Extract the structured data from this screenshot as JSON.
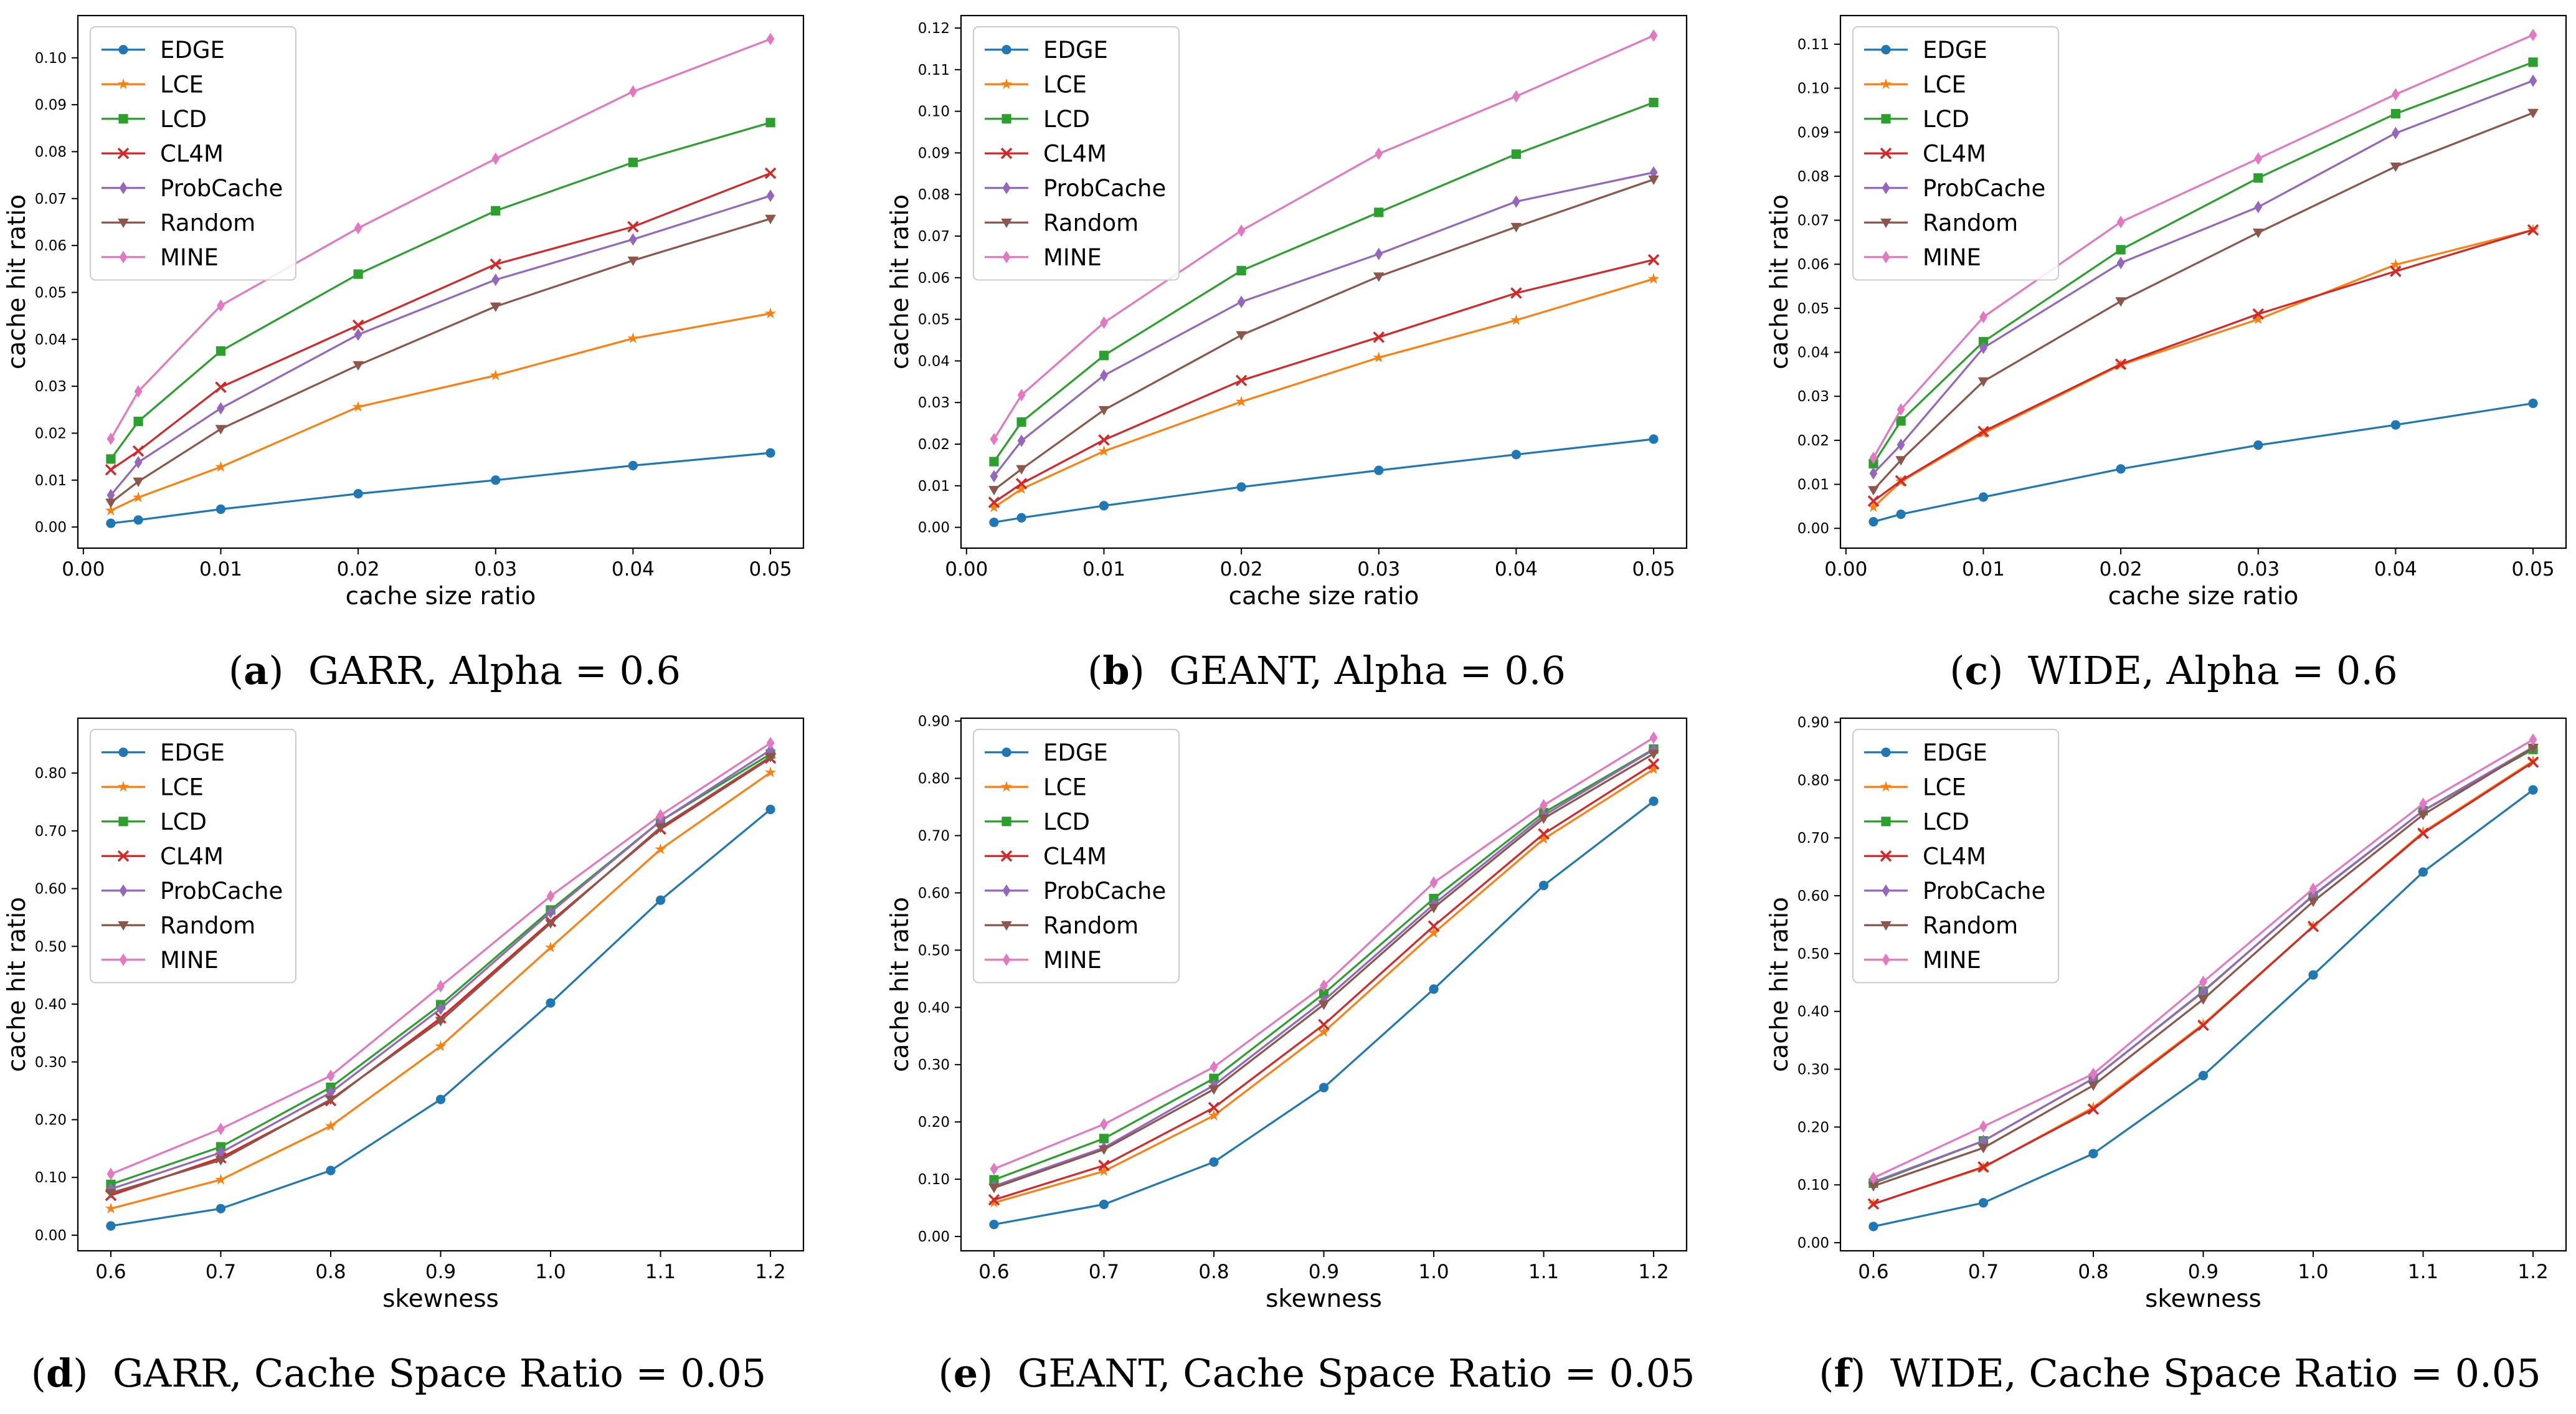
{
  "series_styles": {
    "EDGE": {
      "color": "#1f77b4",
      "marker": "circle"
    },
    "LCE": {
      "color": "#ff7f0e",
      "marker": "star"
    },
    "LCD": {
      "color": "#2ca02c",
      "marker": "square"
    },
    "CL4M": {
      "color": "#d62728",
      "marker": "x"
    },
    "ProbCache": {
      "color": "#9467bd",
      "marker": "diamond"
    },
    "Random": {
      "color": "#8c564b",
      "marker": "triangle-down"
    },
    "MINE": {
      "color": "#e377c2",
      "marker": "diamond"
    }
  },
  "chart_data": [
    {
      "type": "line",
      "caption_letter": "a",
      "caption_text": "GARR, Alpha = 0.6",
      "xlabel": "cache size ratio",
      "ylabel": "cache hit ratio",
      "x": [
        0.002,
        0.004,
        0.01,
        0.02,
        0.03,
        0.04,
        0.05
      ],
      "xlim": [
        -0.0004,
        0.0524
      ],
      "xticks": [
        "0.00",
        "0.01",
        "0.02",
        "0.03",
        "0.04",
        "0.05"
      ],
      "xtick_values": [
        0,
        0.01,
        0.02,
        0.03,
        0.04,
        0.05
      ],
      "ylim": [
        -0.0045,
        0.109
      ],
      "yticks": [
        "0.00",
        "0.01",
        "0.02",
        "0.03",
        "0.04",
        "0.05",
        "0.06",
        "0.07",
        "0.08",
        "0.09",
        "0.10"
      ],
      "ytick_values": [
        0,
        0.01,
        0.02,
        0.03,
        0.04,
        0.05,
        0.06,
        0.07,
        0.08,
        0.09,
        0.1
      ],
      "legend_position": "top-left",
      "series": [
        {
          "name": "EDGE",
          "values": [
            0.0008,
            0.0015,
            0.0038,
            0.0071,
            0.01,
            0.0131,
            0.0158
          ]
        },
        {
          "name": "LCE",
          "values": [
            0.0035,
            0.0063,
            0.0128,
            0.0256,
            0.0323,
            0.0402,
            0.0455
          ]
        },
        {
          "name": "LCD",
          "values": [
            0.0145,
            0.0225,
            0.0375,
            0.0539,
            0.0674,
            0.0777,
            0.0862
          ]
        },
        {
          "name": "CL4M",
          "values": [
            0.0122,
            0.0162,
            0.0298,
            0.043,
            0.056,
            0.064,
            0.0754
          ]
        },
        {
          "name": "ProbCache",
          "values": [
            0.0068,
            0.0138,
            0.0253,
            0.041,
            0.0527,
            0.0613,
            0.0706
          ]
        },
        {
          "name": "Random",
          "values": [
            0.0052,
            0.0097,
            0.0209,
            0.0345,
            0.047,
            0.0568,
            0.0657
          ]
        },
        {
          "name": "MINE",
          "values": [
            0.0188,
            0.0289,
            0.0472,
            0.0637,
            0.0785,
            0.0928,
            0.104
          ]
        }
      ]
    },
    {
      "type": "line",
      "caption_letter": "b",
      "caption_text": "GEANT, Alpha = 0.6",
      "xlabel": "cache size ratio",
      "ylabel": "cache hit ratio",
      "x": [
        0.002,
        0.004,
        0.01,
        0.02,
        0.03,
        0.04,
        0.05
      ],
      "xlim": [
        -0.0004,
        0.0524
      ],
      "xticks": [
        "0.00",
        "0.01",
        "0.02",
        "0.03",
        "0.04",
        "0.05"
      ],
      "xtick_values": [
        0,
        0.01,
        0.02,
        0.03,
        0.04,
        0.05
      ],
      "ylim": [
        -0.005,
        0.123
      ],
      "yticks": [
        "0.00",
        "0.01",
        "0.02",
        "0.03",
        "0.04",
        "0.05",
        "0.06",
        "0.07",
        "0.08",
        "0.09",
        "0.10",
        "0.11",
        "0.12"
      ],
      "ytick_values": [
        0,
        0.01,
        0.02,
        0.03,
        0.04,
        0.05,
        0.06,
        0.07,
        0.08,
        0.09,
        0.1,
        0.11,
        0.12
      ],
      "legend_position": "top-left",
      "series": [
        {
          "name": "EDGE",
          "values": [
            0.0012,
            0.0023,
            0.0052,
            0.0097,
            0.0137,
            0.0175,
            0.0212
          ]
        },
        {
          "name": "LCE",
          "values": [
            0.0048,
            0.0092,
            0.0183,
            0.0302,
            0.0408,
            0.0498,
            0.0597
          ]
        },
        {
          "name": "LCD",
          "values": [
            0.0158,
            0.0253,
            0.0413,
            0.0617,
            0.0757,
            0.0897,
            0.1021
          ]
        },
        {
          "name": "CL4M",
          "values": [
            0.006,
            0.0105,
            0.021,
            0.0353,
            0.0457,
            0.0563,
            0.0643
          ]
        },
        {
          "name": "ProbCache",
          "values": [
            0.0123,
            0.0208,
            0.0365,
            0.0542,
            0.0657,
            0.0783,
            0.0853
          ]
        },
        {
          "name": "Random",
          "values": [
            0.009,
            0.014,
            0.0282,
            0.0462,
            0.0603,
            0.0722,
            0.0836
          ]
        },
        {
          "name": "MINE",
          "values": [
            0.0212,
            0.0318,
            0.0492,
            0.0713,
            0.0898,
            0.1036,
            0.1182
          ]
        }
      ]
    },
    {
      "type": "line",
      "caption_letter": "c",
      "caption_text": "WIDE, Alpha = 0.6",
      "xlabel": "cache size ratio",
      "ylabel": "cache hit ratio",
      "x": [
        0.002,
        0.004,
        0.01,
        0.02,
        0.03,
        0.04,
        0.05
      ],
      "xlim": [
        -0.0004,
        0.0524
      ],
      "xticks": [
        "0.00",
        "0.01",
        "0.02",
        "0.03",
        "0.04",
        "0.05"
      ],
      "xtick_values": [
        0,
        0.01,
        0.02,
        0.03,
        0.04,
        0.05
      ],
      "ylim": [
        -0.0045,
        0.1165
      ],
      "yticks": [
        "0.00",
        "0.01",
        "0.02",
        "0.03",
        "0.04",
        "0.05",
        "0.06",
        "0.07",
        "0.08",
        "0.09",
        "0.10",
        "0.11"
      ],
      "ytick_values": [
        0,
        0.01,
        0.02,
        0.03,
        0.04,
        0.05,
        0.06,
        0.07,
        0.08,
        0.09,
        0.1,
        0.11
      ],
      "legend_position": "top-left",
      "series": [
        {
          "name": "EDGE",
          "values": [
            0.0015,
            0.0032,
            0.0071,
            0.0135,
            0.0189,
            0.0235,
            0.0284
          ]
        },
        {
          "name": "LCE",
          "values": [
            0.0048,
            0.0106,
            0.0216,
            0.0371,
            0.0475,
            0.0599,
            0.0678
          ]
        },
        {
          "name": "LCD",
          "values": [
            0.0147,
            0.0244,
            0.0424,
            0.0633,
            0.0796,
            0.0942,
            0.1059
          ]
        },
        {
          "name": "CL4M",
          "values": [
            0.0062,
            0.0108,
            0.022,
            0.0373,
            0.0487,
            0.0584,
            0.0678
          ]
        },
        {
          "name": "ProbCache",
          "values": [
            0.0125,
            0.019,
            0.041,
            0.0603,
            0.073,
            0.0898,
            0.1017
          ]
        },
        {
          "name": "Random",
          "values": [
            0.0087,
            0.0155,
            0.0334,
            0.0516,
            0.0672,
            0.0822,
            0.0944
          ]
        },
        {
          "name": "MINE",
          "values": [
            0.016,
            0.027,
            0.048,
            0.0696,
            0.084,
            0.0986,
            0.1121
          ]
        }
      ]
    },
    {
      "type": "line",
      "caption_letter": "d",
      "caption_text": "GARR, Cache Space Ratio = 0.05",
      "xlabel": "skewness",
      "ylabel": "cache hit ratio",
      "x": [
        0.6,
        0.7,
        0.8,
        0.9,
        1.0,
        1.1,
        1.2
      ],
      "xlim": [
        0.57,
        1.23
      ],
      "xticks": [
        "0.6",
        "0.7",
        "0.8",
        "0.9",
        "1.0",
        "1.1",
        "1.2"
      ],
      "xtick_values": [
        0.6,
        0.7,
        0.8,
        0.9,
        1.0,
        1.1,
        1.2
      ],
      "ylim": [
        -0.027,
        0.895
      ],
      "yticks": [
        "0.00",
        "0.10",
        "0.20",
        "0.30",
        "0.40",
        "0.50",
        "0.60",
        "0.70",
        "0.80"
      ],
      "ytick_values": [
        0,
        0.1,
        0.2,
        0.3,
        0.4,
        0.5,
        0.6,
        0.7,
        0.8
      ],
      "legend_position": "top-left",
      "series": [
        {
          "name": "EDGE",
          "values": [
            0.016,
            0.046,
            0.112,
            0.235,
            0.402,
            0.58,
            0.737
          ]
        },
        {
          "name": "LCE",
          "values": [
            0.046,
            0.096,
            0.189,
            0.327,
            0.498,
            0.668,
            0.801
          ]
        },
        {
          "name": "LCD",
          "values": [
            0.088,
            0.153,
            0.256,
            0.399,
            0.563,
            0.717,
            0.833
          ]
        },
        {
          "name": "CL4M",
          "values": [
            0.069,
            0.134,
            0.233,
            0.376,
            0.543,
            0.703,
            0.826
          ]
        },
        {
          "name": "ProbCache",
          "values": [
            0.08,
            0.143,
            0.247,
            0.392,
            0.559,
            0.717,
            0.84
          ]
        },
        {
          "name": "Random",
          "values": [
            0.073,
            0.13,
            0.235,
            0.371,
            0.54,
            0.706,
            0.828
          ]
        },
        {
          "name": "MINE",
          "values": [
            0.106,
            0.184,
            0.276,
            0.431,
            0.587,
            0.727,
            0.852
          ]
        }
      ]
    },
    {
      "type": "line",
      "caption_letter": "e",
      "caption_text": "GEANT, Cache Space Ratio = 0.05",
      "xlabel": "skewness",
      "ylabel": "cache hit ratio",
      "x": [
        0.6,
        0.7,
        0.8,
        0.9,
        1.0,
        1.1,
        1.2
      ],
      "xlim": [
        0.57,
        1.23
      ],
      "xticks": [
        "0.6",
        "0.7",
        "0.8",
        "0.9",
        "1.0",
        "1.1",
        "1.2"
      ],
      "xtick_values": [
        0.6,
        0.7,
        0.8,
        0.9,
        1.0,
        1.1,
        1.2
      ],
      "ylim": [
        -0.025,
        0.905
      ],
      "yticks": [
        "0.00",
        "0.10",
        "0.20",
        "0.30",
        "0.40",
        "0.50",
        "0.60",
        "0.70",
        "0.80",
        "0.90"
      ],
      "ytick_values": [
        0,
        0.1,
        0.2,
        0.3,
        0.4,
        0.5,
        0.6,
        0.7,
        0.8,
        0.9
      ],
      "legend_position": "top-left",
      "series": [
        {
          "name": "EDGE",
          "values": [
            0.021,
            0.056,
            0.13,
            0.26,
            0.432,
            0.613,
            0.76
          ]
        },
        {
          "name": "LCE",
          "values": [
            0.059,
            0.114,
            0.211,
            0.357,
            0.53,
            0.694,
            0.816
          ]
        },
        {
          "name": "LCD",
          "values": [
            0.099,
            0.171,
            0.276,
            0.424,
            0.59,
            0.74,
            0.851
          ]
        },
        {
          "name": "CL4M",
          "values": [
            0.064,
            0.124,
            0.225,
            0.37,
            0.542,
            0.703,
            0.825
          ]
        },
        {
          "name": "ProbCache",
          "values": [
            0.088,
            0.155,
            0.264,
            0.412,
            0.58,
            0.735,
            0.85
          ]
        },
        {
          "name": "Random",
          "values": [
            0.085,
            0.152,
            0.257,
            0.405,
            0.574,
            0.73,
            0.843
          ]
        },
        {
          "name": "MINE",
          "values": [
            0.118,
            0.196,
            0.296,
            0.438,
            0.618,
            0.753,
            0.871
          ]
        }
      ]
    },
    {
      "type": "line",
      "caption_letter": "f",
      "caption_text": "WIDE, Cache Space Ratio = 0.05",
      "xlabel": "skewness",
      "ylabel": "cache hit ratio",
      "x": [
        0.6,
        0.7,
        0.8,
        0.9,
        1.0,
        1.1,
        1.2
      ],
      "xlim": [
        0.57,
        1.23
      ],
      "xticks": [
        "0.6",
        "0.7",
        "0.8",
        "0.9",
        "1.0",
        "1.1",
        "1.2"
      ],
      "xtick_values": [
        0.6,
        0.7,
        0.8,
        0.9,
        1.0,
        1.1,
        1.2
      ],
      "ylim": [
        -0.014,
        0.907
      ],
      "yticks": [
        "0.00",
        "0.10",
        "0.20",
        "0.30",
        "0.40",
        "0.50",
        "0.60",
        "0.70",
        "0.80",
        "0.90"
      ],
      "ytick_values": [
        0,
        0.1,
        0.2,
        0.3,
        0.4,
        0.5,
        0.6,
        0.7,
        0.8,
        0.9
      ],
      "legend_position": "top-left",
      "series": [
        {
          "name": "EDGE",
          "values": [
            0.028,
            0.069,
            0.154,
            0.289,
            0.463,
            0.641,
            0.783
          ]
        },
        {
          "name": "LCE",
          "values": [
            0.067,
            0.13,
            0.234,
            0.378,
            0.547,
            0.71,
            0.833
          ]
        },
        {
          "name": "LCD",
          "values": [
            0.103,
            0.176,
            0.284,
            0.435,
            0.6,
            0.747,
            0.853
          ]
        },
        {
          "name": "CL4M",
          "values": [
            0.067,
            0.131,
            0.231,
            0.376,
            0.547,
            0.708,
            0.831
          ]
        },
        {
          "name": "ProbCache",
          "values": [
            0.105,
            0.176,
            0.284,
            0.434,
            0.601,
            0.747,
            0.857
          ]
        },
        {
          "name": "Random",
          "values": [
            0.098,
            0.164,
            0.272,
            0.421,
            0.59,
            0.74,
            0.856
          ]
        },
        {
          "name": "MINE",
          "values": [
            0.112,
            0.201,
            0.292,
            0.451,
            0.612,
            0.759,
            0.87
          ]
        }
      ]
    }
  ]
}
